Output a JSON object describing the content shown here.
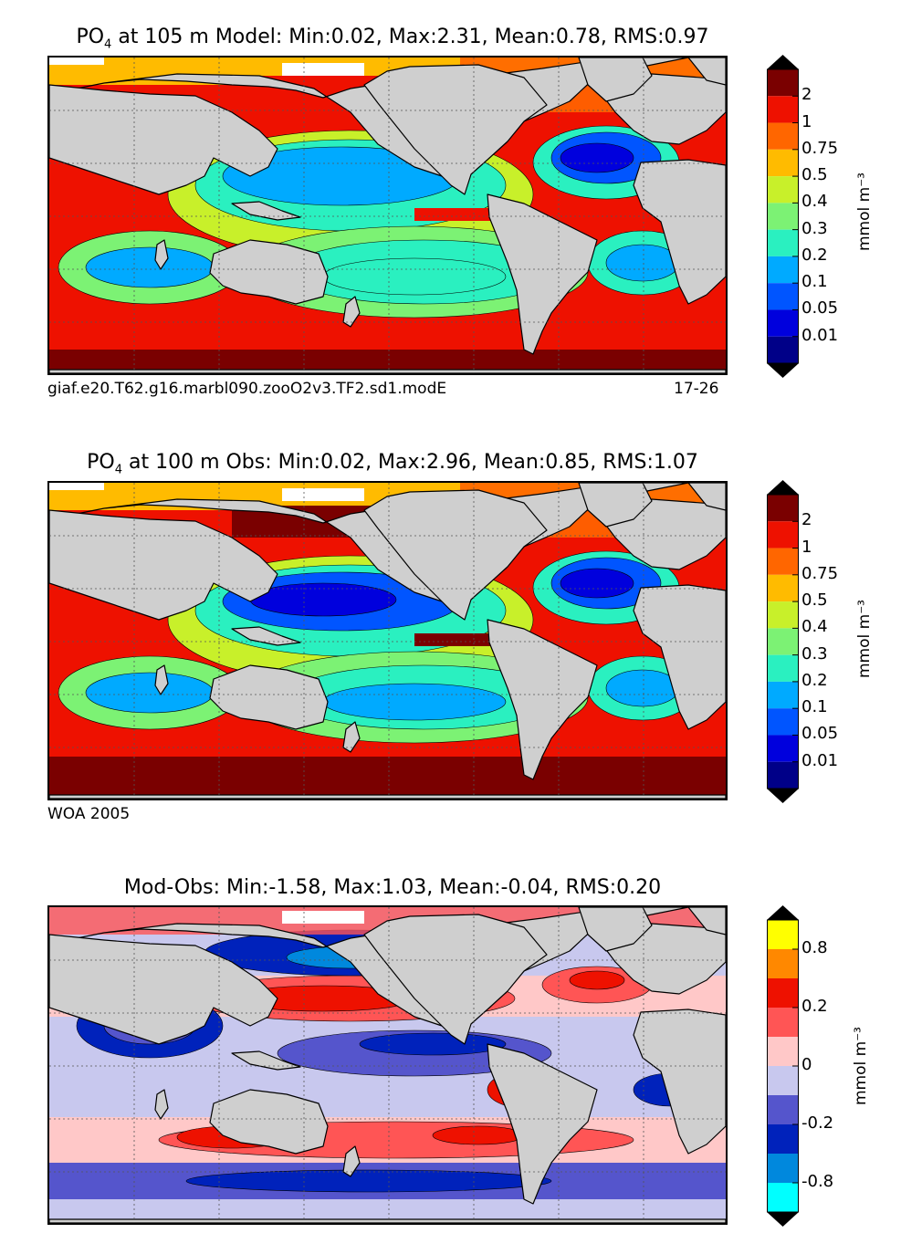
{
  "chart_data": [
    {
      "type": "heatmap",
      "panel": "model",
      "title_prefix": "PO",
      "title_sub": "4",
      "title_rest": " at 105 m Model: Min:0.02, Max:2.31, Mean:0.78, RMS:0.97",
      "caption_left": "giaf.e20.T62.g16.marbl090.zooO2v3.TF2.sd1.modE",
      "caption_right": "17-26",
      "stats": {
        "min": 0.02,
        "max": 2.31,
        "mean": 0.78,
        "rms": 0.97
      },
      "depth": "105 m",
      "colorbar": {
        "levels": [
          "2",
          "1",
          "0.75",
          "0.5",
          "0.4",
          "0.3",
          "0.2",
          "0.1",
          "0.05",
          "0.01"
        ],
        "colors": [
          "#7a0000",
          "#ee1100",
          "#ff6600",
          "#ffbb00",
          "#c8f02a",
          "#7cf274",
          "#2af0c0",
          "#00aaff",
          "#0055ff",
          "#0000dd",
          "#000088"
        ],
        "unit": "mmol m⁻³"
      }
    },
    {
      "type": "heatmap",
      "panel": "obs",
      "title_prefix": "PO",
      "title_sub": "4",
      "title_rest": " at 100 m Obs: Min:0.02, Max:2.96, Mean:0.85, RMS:1.07",
      "caption_left": "WOA 2005",
      "stats": {
        "min": 0.02,
        "max": 2.96,
        "mean": 0.85,
        "rms": 1.07
      },
      "depth": "100 m",
      "colorbar": {
        "levels": [
          "2",
          "1",
          "0.75",
          "0.5",
          "0.4",
          "0.3",
          "0.2",
          "0.1",
          "0.05",
          "0.01"
        ],
        "colors": [
          "#7a0000",
          "#ee1100",
          "#ff6600",
          "#ffbb00",
          "#c8f02a",
          "#7cf274",
          "#2af0c0",
          "#00aaff",
          "#0055ff",
          "#0000dd",
          "#000088"
        ],
        "unit": "mmol m⁻³"
      }
    },
    {
      "type": "heatmap",
      "panel": "difference",
      "title_prefix": "",
      "title_sub": "",
      "title_rest": "Mod-Obs: Min:-1.58, Max:1.03, Mean:-0.04, RMS:0.20",
      "stats": {
        "min": -1.58,
        "max": 1.03,
        "mean": -0.04,
        "rms": 0.2
      },
      "colorbar": {
        "levels": [
          "0.8",
          "0.2",
          "0",
          "-0.2",
          "-0.8"
        ],
        "label_slots": [
          1,
          3,
          5,
          7,
          9
        ],
        "colors": [
          "#ffff00",
          "#ff8800",
          "#ee1100",
          "#ff5555",
          "#ffc8c8",
          "#c8c8ee",
          "#5555cc",
          "#0022bb",
          "#0088dd",
          "#00ffff"
        ],
        "unit": "mmol m⁻³"
      }
    }
  ]
}
